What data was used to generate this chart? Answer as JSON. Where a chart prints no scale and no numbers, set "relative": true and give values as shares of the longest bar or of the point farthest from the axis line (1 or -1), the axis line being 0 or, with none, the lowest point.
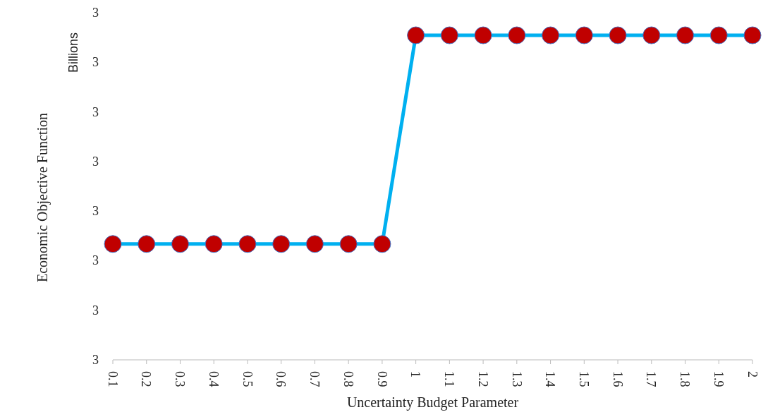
{
  "chart_data": {
    "type": "line",
    "xlabel": "Uncertainty Budget Parameter",
    "ylabel": "Economic Objective Function",
    "annotations": [
      "Billions",
      "3",
      "3",
      "3",
      "3",
      "3",
      "3",
      "3",
      "3"
    ],
    "categories": [
      "0.1",
      "0.2",
      "0.3",
      "0.4",
      "0.5",
      "0.6",
      "0.7",
      "0.8",
      "0.9",
      "1",
      "1.1",
      "1.2",
      "1.3",
      "1.4",
      "1.5",
      "1.6",
      "1.7",
      "1.8",
      "1.9",
      "2"
    ],
    "relative": true,
    "series": [
      {
        "color": "#00b0f0",
        "values": [
          0.357,
          0.357,
          0.357,
          0.357,
          0.357,
          0.357,
          0.357,
          0.357,
          0.357,
          1,
          1,
          1,
          1,
          1,
          1,
          1,
          1,
          1,
          1,
          1
        ]
      }
    ],
    "marker": "circle",
    "line_style": "solid"
  }
}
